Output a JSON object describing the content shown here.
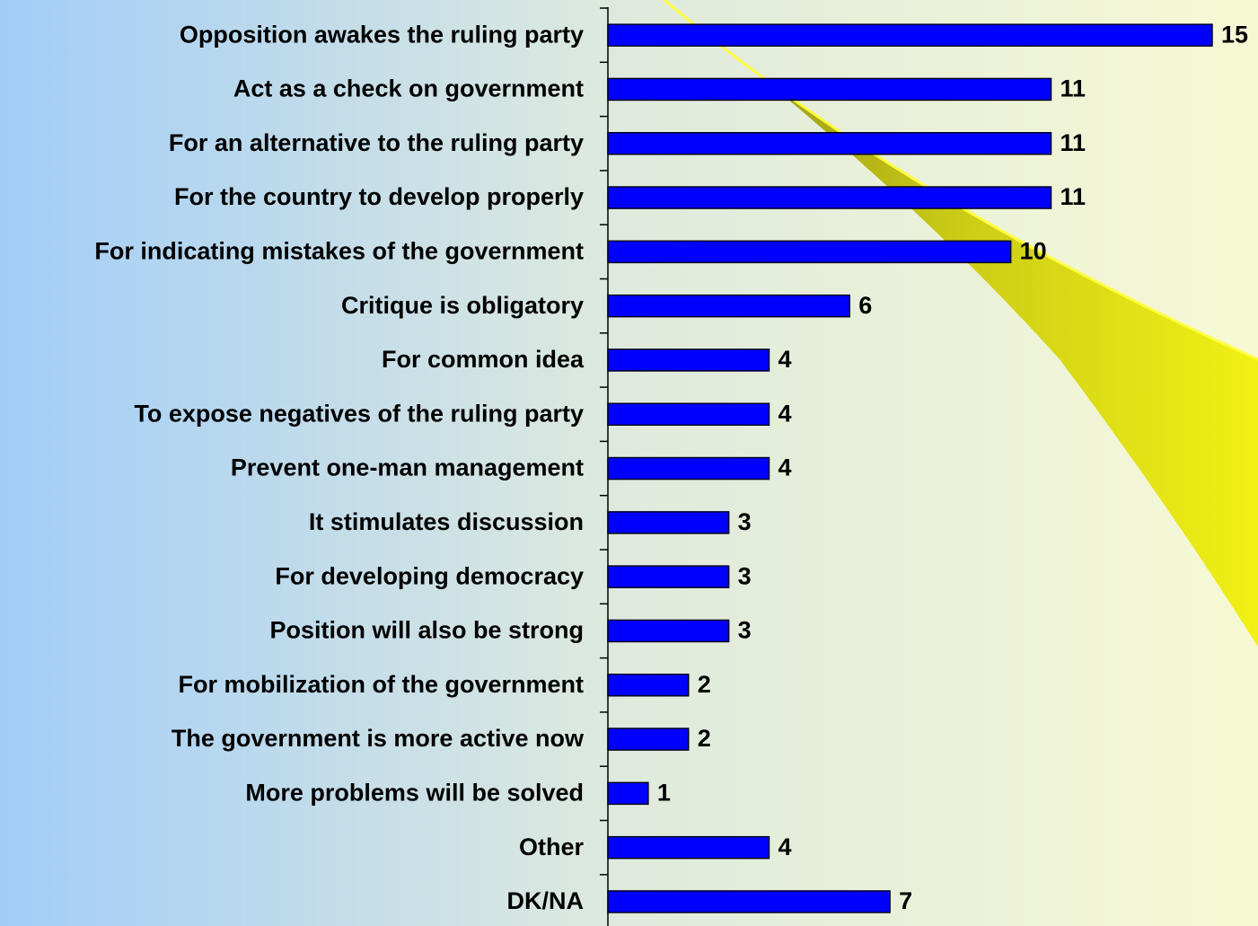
{
  "chart_data": {
    "type": "bar",
    "orientation": "horizontal",
    "categories": [
      "Opposition awakes the ruling party",
      "Act as a check on government",
      "For an alternative to the ruling party",
      "For the country to develop properly",
      "For indicating mistakes of the government",
      "Critique is obligatory",
      "For common idea",
      "To expose negatives of the ruling party",
      "Prevent one-man management",
      "It stimulates discussion",
      "For developing democracy",
      "Position will also be strong",
      "For mobilization of the government",
      "The government is more active now",
      "More problems will be solved",
      "Other",
      "DK/NA"
    ],
    "values": [
      15,
      11,
      11,
      11,
      10,
      6,
      4,
      4,
      4,
      3,
      3,
      3,
      2,
      2,
      1,
      4,
      7
    ],
    "color": "#0000ff"
  }
}
